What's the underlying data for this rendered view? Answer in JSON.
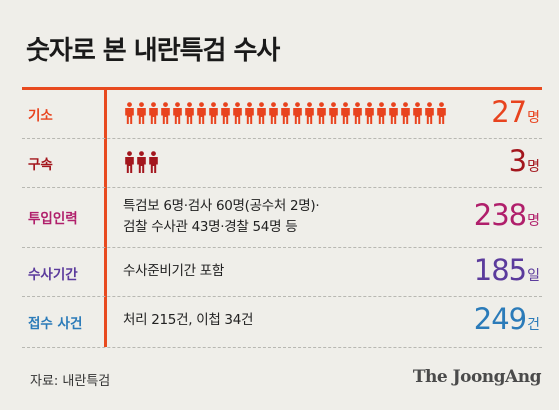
{
  "title": "숫자로 본 내란특검 수사",
  "rows": [
    {
      "label": "기소",
      "desc": "",
      "count": 27,
      "value": "27",
      "unit": "명",
      "color": "#e8431e",
      "figure_color": "#e8431e"
    },
    {
      "label": "구속",
      "desc": "",
      "count": 3,
      "value": "3",
      "unit": "명",
      "color": "#a3161d",
      "figure_color": "#a3161d"
    },
    {
      "label": "투입인력",
      "desc_line1": "특검보 6명·검사 60명(공수처 2명)·",
      "desc_line2": "검찰 수사관 43명·경찰 54명 등",
      "value": "238",
      "unit": "명",
      "color": "#b01f6b"
    },
    {
      "label": "수사기간",
      "desc": "수사준비기간 포함",
      "value": "185",
      "unit": "일",
      "color": "#5b3b9c"
    },
    {
      "label": "접수 사건",
      "desc": "처리 215건, 이첩 34건",
      "value": "249",
      "unit": "건",
      "color": "#2b7bb9"
    }
  ],
  "source": "자료: 내란특검",
  "logo": "The JoongAng",
  "colors": {
    "accent": "#e84a1f",
    "background": "#efeee9"
  },
  "icons": [
    "person-icon"
  ]
}
